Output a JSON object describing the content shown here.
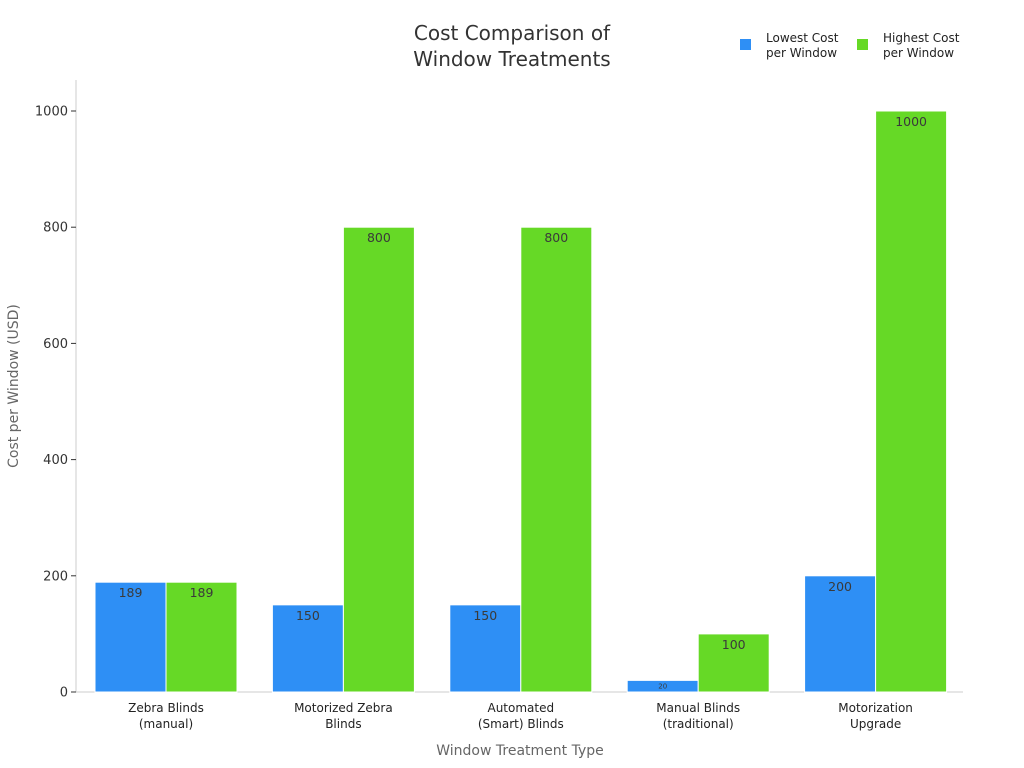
{
  "chart_data": {
    "type": "bar",
    "title_lines": [
      "Cost Comparison of",
      "Window Treatments"
    ],
    "xlabel": "Window Treatment Type",
    "ylabel": "Cost per Window (USD)",
    "ylim": [
      0,
      1050
    ],
    "yticks": [
      0,
      200,
      400,
      600,
      800,
      1000
    ],
    "grid": false,
    "legend_position": "top-right",
    "categories": [
      [
        "Zebra Blinds",
        "(manual)"
      ],
      [
        "Motorized Zebra",
        "Blinds"
      ],
      [
        "Automated",
        "(Smart) Blinds"
      ],
      [
        "Manual Blinds",
        "(traditional)"
      ],
      [
        "Motorization",
        "Upgrade"
      ]
    ],
    "series": [
      {
        "name_lines": [
          "Lowest Cost",
          "per Window"
        ],
        "color": "#2e8ff5",
        "values": [
          189,
          150,
          150,
          20,
          200
        ],
        "labels": [
          "189",
          "150",
          "150",
          "20",
          "200"
        ]
      },
      {
        "name_lines": [
          "Highest Cost",
          "per Window"
        ],
        "color": "#66d926",
        "values": [
          189,
          800,
          800,
          100,
          1000
        ],
        "labels": [
          "189",
          "800",
          "800",
          "100",
          "1000"
        ]
      }
    ]
  }
}
